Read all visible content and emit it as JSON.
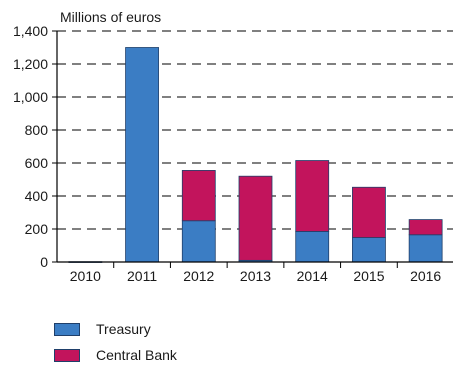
{
  "chart_data": {
    "type": "bar",
    "stacked": true,
    "ylabel": "Millions of euros",
    "categories": [
      "2010",
      "2011",
      "2012",
      "2013",
      "2014",
      "2015",
      "2016"
    ],
    "series": [
      {
        "name": "Treasury",
        "color": "#3b7dc4",
        "values": [
          2,
          1300,
          250,
          10,
          185,
          148,
          165
        ]
      },
      {
        "name": "Central Bank",
        "color": "#c2145c",
        "values": [
          0,
          0,
          305,
          510,
          430,
          305,
          92
        ]
      }
    ],
    "ylim": [
      0,
      1400
    ],
    "yticks": [
      0,
      200,
      400,
      600,
      800,
      1000,
      1200,
      1400
    ],
    "ytick_labels": [
      "0",
      "200",
      "400",
      "600",
      "800",
      "1,000",
      "1,200",
      "1,400"
    ],
    "grid": "dashed horizontal",
    "legend_position": "bottom-left"
  }
}
